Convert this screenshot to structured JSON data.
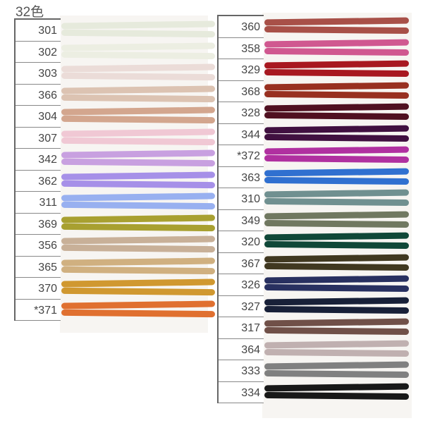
{
  "title": "32色",
  "left": [
    {
      "code": "301",
      "color": "#e6eadc"
    },
    {
      "code": "302",
      "color": "#eceee2"
    },
    {
      "code": "303",
      "color": "#ebdcd8"
    },
    {
      "code": "366",
      "color": "#dcc3b2"
    },
    {
      "code": "304",
      "color": "#d3a68e"
    },
    {
      "code": "307",
      "color": "#f0c8d4"
    },
    {
      "code": "342",
      "color": "#c8a0e0"
    },
    {
      "code": "362",
      "color": "#a690e8"
    },
    {
      "code": "311",
      "color": "#98b0f0"
    },
    {
      "code": "369",
      "color": "#a8a030"
    },
    {
      "code": "356",
      "color": "#c8b098"
    },
    {
      "code": "365",
      "color": "#d0b080"
    },
    {
      "code": "370",
      "color": "#d09830"
    },
    {
      "code": "*371",
      "color": "#e07030"
    }
  ],
  "right": [
    {
      "code": "360",
      "color": "#a85048"
    },
    {
      "code": "358",
      "color": "#d05890"
    },
    {
      "code": "329",
      "color": "#a81820"
    },
    {
      "code": "368",
      "color": "#983020"
    },
    {
      "code": "328",
      "color": "#501020"
    },
    {
      "code": "344",
      "color": "#401040"
    },
    {
      "code": "*372",
      "color": "#b030a0"
    },
    {
      "code": "363",
      "color": "#3070d0"
    },
    {
      "code": "310",
      "color": "#709090"
    },
    {
      "code": "349",
      "color": "#707860"
    },
    {
      "code": "320",
      "color": "#104838"
    },
    {
      "code": "367",
      "color": "#403820"
    },
    {
      "code": "326",
      "color": "#283060"
    },
    {
      "code": "327",
      "color": "#182038"
    },
    {
      "code": "317",
      "color": "#705048"
    },
    {
      "code": "364",
      "color": "#c0b0b0"
    },
    {
      "code": "333",
      "color": "#808080"
    },
    {
      "code": "334",
      "color": "#181818"
    }
  ]
}
